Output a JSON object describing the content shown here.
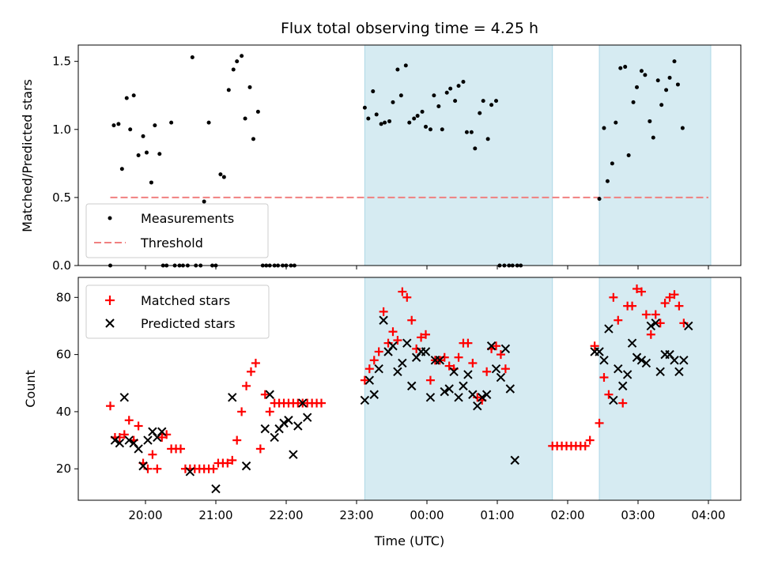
{
  "chart_data": {
    "type": "scatter",
    "title": "Flux total observing time = 4.25 h",
    "xlabel": "Time (UTC)",
    "x_tick_labels": [
      "20:00",
      "21:00",
      "22:00",
      "23:00",
      "00:00",
      "01:00",
      "02:00",
      "03:00",
      "04:00"
    ],
    "highlight_regions": [
      [
        "23:07",
        "01:47"
      ],
      [
        "02:27",
        "04:02"
      ]
    ],
    "colors": {
      "measurements": "#000000",
      "threshold": "#f08080",
      "matched": "#ff0000",
      "predicted": "#000000",
      "highlight": "#add8e6"
    },
    "top": {
      "ylabel": "Matched/Predicted stars",
      "ylim": [
        0,
        1.62
      ],
      "y_ticks": [
        "0.0",
        "0.5",
        "1.0",
        "1.5"
      ],
      "threshold": 0.5,
      "threshold_x": [
        "19:30",
        "04:00"
      ],
      "legend": [
        "Measurements",
        "Threshold"
      ],
      "measurements": [
        [
          "19:30",
          0
        ],
        [
          "19:33",
          1.03
        ],
        [
          "19:37",
          1.04
        ],
        [
          "19:40",
          0.71
        ],
        [
          "19:44",
          1.23
        ],
        [
          "19:47",
          1.0
        ],
        [
          "19:50",
          1.25
        ],
        [
          "19:54",
          0.81
        ],
        [
          "19:58",
          0.95
        ],
        [
          "20:01",
          0.83
        ],
        [
          "20:05",
          0.61
        ],
        [
          "20:08",
          1.03
        ],
        [
          "20:12",
          0.82
        ],
        [
          "20:15",
          0
        ],
        [
          "20:18",
          0
        ],
        [
          "20:22",
          1.05
        ],
        [
          "20:25",
          0
        ],
        [
          "20:29",
          0
        ],
        [
          "20:32",
          0
        ],
        [
          "20:36",
          0
        ],
        [
          "20:40",
          1.53
        ],
        [
          "20:43",
          0
        ],
        [
          "20:47",
          0
        ],
        [
          "20:50",
          0.47
        ],
        [
          "20:54",
          1.05
        ],
        [
          "20:57",
          0
        ],
        [
          "21:00",
          0
        ],
        [
          "21:04",
          0.67
        ],
        [
          "21:07",
          0.65
        ],
        [
          "21:11",
          1.29
        ],
        [
          "21:15",
          1.44
        ],
        [
          "21:18",
          1.5
        ],
        [
          "21:22",
          1.54
        ],
        [
          "21:25",
          1.08
        ],
        [
          "21:29",
          1.31
        ],
        [
          "21:32",
          0.93
        ],
        [
          "21:36",
          1.13
        ],
        [
          "21:40",
          0
        ],
        [
          "21:43",
          0
        ],
        [
          "21:46",
          0
        ],
        [
          "21:50",
          0
        ],
        [
          "21:53",
          0
        ],
        [
          "21:57",
          0
        ],
        [
          "22:00",
          0
        ],
        [
          "22:04",
          0
        ],
        [
          "22:07",
          0
        ],
        [
          "23:07",
          1.16
        ],
        [
          "23:10",
          1.08
        ],
        [
          "23:14",
          1.28
        ],
        [
          "23:17",
          1.11
        ],
        [
          "23:21",
          1.04
        ],
        [
          "23:24",
          1.05
        ],
        [
          "23:28",
          1.06
        ],
        [
          "23:31",
          1.2
        ],
        [
          "23:35",
          1.44
        ],
        [
          "23:38",
          1.25
        ],
        [
          "23:42",
          1.47
        ],
        [
          "23:45",
          1.05
        ],
        [
          "23:49",
          1.08
        ],
        [
          "23:52",
          1.1
        ],
        [
          "23:56",
          1.13
        ],
        [
          "23:59",
          1.02
        ],
        [
          "00:03",
          1.0
        ],
        [
          "00:06",
          1.25
        ],
        [
          "00:10",
          1.17
        ],
        [
          "00:13",
          1.0
        ],
        [
          "00:17",
          1.27
        ],
        [
          "00:20",
          1.3
        ],
        [
          "00:24",
          1.21
        ],
        [
          "00:27",
          1.32
        ],
        [
          "00:31",
          1.35
        ],
        [
          "00:34",
          0.98
        ],
        [
          "00:38",
          0.98
        ],
        [
          "00:41",
          0.86
        ],
        [
          "00:45",
          1.12
        ],
        [
          "00:48",
          1.21
        ],
        [
          "00:52",
          0.93
        ],
        [
          "00:55",
          1.18
        ],
        [
          "00:59",
          1.21
        ],
        [
          "01:02",
          0
        ],
        [
          "01:06",
          0
        ],
        [
          "01:10",
          0
        ],
        [
          "01:13",
          0
        ],
        [
          "01:17",
          0
        ],
        [
          "01:20",
          0
        ],
        [
          "02:27",
          0.49
        ],
        [
          "02:31",
          1.01
        ],
        [
          "02:34",
          0.62
        ],
        [
          "02:38",
          0.75
        ],
        [
          "02:41",
          1.05
        ],
        [
          "02:45",
          1.45
        ],
        [
          "02:49",
          1.46
        ],
        [
          "02:52",
          0.81
        ],
        [
          "02:56",
          1.2
        ],
        [
          "02:59",
          1.31
        ],
        [
          "03:03",
          1.43
        ],
        [
          "03:06",
          1.4
        ],
        [
          "03:10",
          1.06
        ],
        [
          "03:13",
          0.94
        ],
        [
          "03:17",
          1.36
        ],
        [
          "03:20",
          1.18
        ],
        [
          "03:24",
          1.29
        ],
        [
          "03:27",
          1.38
        ],
        [
          "03:31",
          1.5
        ],
        [
          "03:34",
          1.33
        ],
        [
          "03:38",
          1.01
        ]
      ]
    },
    "bottom": {
      "ylabel": "Count",
      "ylim": [
        9,
        87
      ],
      "y_ticks": [
        "20",
        "40",
        "60",
        "80"
      ],
      "legend": [
        "Matched stars",
        "Predicted stars"
      ],
      "matched": [
        [
          "19:30",
          42
        ],
        [
          "19:34",
          31
        ],
        [
          "19:38",
          31
        ],
        [
          "19:42",
          32
        ],
        [
          "19:46",
          37
        ],
        [
          "19:50",
          30
        ],
        [
          "19:54",
          35
        ],
        [
          "19:58",
          22
        ],
        [
          "20:02",
          20
        ],
        [
          "20:06",
          25
        ],
        [
          "20:10",
          20
        ],
        [
          "20:14",
          31
        ],
        [
          "20:18",
          32
        ],
        [
          "20:22",
          27
        ],
        [
          "20:26",
          27
        ],
        [
          "20:30",
          27
        ],
        [
          "20:34",
          20
        ],
        [
          "20:38",
          20
        ],
        [
          "20:42",
          20
        ],
        [
          "20:46",
          20
        ],
        [
          "20:50",
          20
        ],
        [
          "20:54",
          20
        ],
        [
          "20:58",
          20
        ],
        [
          "21:02",
          22
        ],
        [
          "21:06",
          22
        ],
        [
          "21:10",
          22
        ],
        [
          "21:14",
          23
        ],
        [
          "21:18",
          30
        ],
        [
          "21:22",
          40
        ],
        [
          "21:26",
          49
        ],
        [
          "21:30",
          54
        ],
        [
          "21:34",
          57
        ],
        [
          "21:38",
          27
        ],
        [
          "21:42",
          46
        ],
        [
          "21:46",
          40
        ],
        [
          "21:50",
          43
        ],
        [
          "21:54",
          43
        ],
        [
          "21:58",
          43
        ],
        [
          "22:02",
          43
        ],
        [
          "22:06",
          43
        ],
        [
          "22:10",
          43
        ],
        [
          "22:14",
          43
        ],
        [
          "22:18",
          43
        ],
        [
          "22:22",
          43
        ],
        [
          "22:26",
          43
        ],
        [
          "22:30",
          43
        ],
        [
          "23:07",
          51
        ],
        [
          "23:11",
          55
        ],
        [
          "23:15",
          58
        ],
        [
          "23:19",
          61
        ],
        [
          "23:23",
          75
        ],
        [
          "23:27",
          64
        ],
        [
          "23:31",
          68
        ],
        [
          "23:35",
          65
        ],
        [
          "23:39",
          82
        ],
        [
          "23:43",
          80
        ],
        [
          "23:47",
          72
        ],
        [
          "23:51",
          62
        ],
        [
          "23:55",
          66
        ],
        [
          "23:59",
          67
        ],
        [
          "00:03",
          51
        ],
        [
          "00:07",
          58
        ],
        [
          "00:11",
          58
        ],
        [
          "00:15",
          59
        ],
        [
          "00:19",
          56
        ],
        [
          "00:23",
          55
        ],
        [
          "00:27",
          59
        ],
        [
          "00:31",
          64
        ],
        [
          "00:35",
          64
        ],
        [
          "00:39",
          57
        ],
        [
          "00:43",
          45
        ],
        [
          "00:47",
          44
        ],
        [
          "00:51",
          54
        ],
        [
          "00:55",
          62
        ],
        [
          "00:59",
          63
        ],
        [
          "01:03",
          60
        ],
        [
          "01:07",
          55
        ],
        [
          "01:47",
          28
        ],
        [
          "01:51",
          28
        ],
        [
          "01:55",
          28
        ],
        [
          "01:59",
          28
        ],
        [
          "02:03",
          28
        ],
        [
          "02:07",
          28
        ],
        [
          "02:11",
          28
        ],
        [
          "02:15",
          28
        ],
        [
          "02:19",
          30
        ],
        [
          "02:23",
          63
        ],
        [
          "02:27",
          36
        ],
        [
          "02:31",
          52
        ],
        [
          "02:35",
          46
        ],
        [
          "02:39",
          80
        ],
        [
          "02:43",
          72
        ],
        [
          "02:47",
          43
        ],
        [
          "02:51",
          77
        ],
        [
          "02:55",
          77
        ],
        [
          "02:59",
          83
        ],
        [
          "03:03",
          82
        ],
        [
          "03:07",
          74
        ],
        [
          "03:11",
          67
        ],
        [
          "03:15",
          74
        ],
        [
          "03:19",
          71
        ],
        [
          "03:23",
          78
        ],
        [
          "03:27",
          80
        ],
        [
          "03:31",
          81
        ],
        [
          "03:35",
          77
        ],
        [
          "03:39",
          71
        ]
      ],
      "predicted": [
        [
          "19:34",
          30
        ],
        [
          "19:38",
          29
        ],
        [
          "19:42",
          45
        ],
        [
          "19:46",
          30
        ],
        [
          "19:50",
          29
        ],
        [
          "19:54",
          27
        ],
        [
          "19:58",
          21
        ],
        [
          "20:02",
          30
        ],
        [
          "20:06",
          33
        ],
        [
          "20:10",
          31
        ],
        [
          "20:14",
          33
        ],
        [
          "20:38",
          19
        ],
        [
          "21:00",
          13
        ],
        [
          "21:14",
          45
        ],
        [
          "21:26",
          21
        ],
        [
          "21:42",
          34
        ],
        [
          "21:46",
          46
        ],
        [
          "21:50",
          31
        ],
        [
          "21:54",
          34
        ],
        [
          "21:58",
          36
        ],
        [
          "22:02",
          37
        ],
        [
          "22:06",
          25
        ],
        [
          "22:10",
          35
        ],
        [
          "22:14",
          43
        ],
        [
          "22:18",
          38
        ],
        [
          "23:07",
          44
        ],
        [
          "23:11",
          51
        ],
        [
          "23:15",
          46
        ],
        [
          "23:19",
          55
        ],
        [
          "23:23",
          72
        ],
        [
          "23:27",
          61
        ],
        [
          "23:31",
          63
        ],
        [
          "23:35",
          54
        ],
        [
          "23:39",
          57
        ],
        [
          "23:43",
          64
        ],
        [
          "23:47",
          49
        ],
        [
          "23:51",
          59
        ],
        [
          "23:55",
          61
        ],
        [
          "23:59",
          61
        ],
        [
          "00:03",
          45
        ],
        [
          "00:07",
          58
        ],
        [
          "00:11",
          58
        ],
        [
          "00:15",
          47
        ],
        [
          "00:19",
          48
        ],
        [
          "00:23",
          54
        ],
        [
          "00:27",
          45
        ],
        [
          "00:31",
          49
        ],
        [
          "00:35",
          53
        ],
        [
          "00:39",
          46
        ],
        [
          "00:43",
          42
        ],
        [
          "00:47",
          45
        ],
        [
          "00:51",
          46
        ],
        [
          "00:55",
          63
        ],
        [
          "00:59",
          55
        ],
        [
          "01:03",
          52
        ],
        [
          "01:07",
          62
        ],
        [
          "01:11",
          48
        ],
        [
          "01:15",
          23
        ],
        [
          "02:23",
          61
        ],
        [
          "02:27",
          61
        ],
        [
          "02:31",
          58
        ],
        [
          "02:35",
          69
        ],
        [
          "02:39",
          44
        ],
        [
          "02:43",
          55
        ],
        [
          "02:47",
          49
        ],
        [
          "02:51",
          53
        ],
        [
          "02:55",
          64
        ],
        [
          "02:59",
          59
        ],
        [
          "03:03",
          58
        ],
        [
          "03:07",
          57
        ],
        [
          "03:11",
          70
        ],
        [
          "03:15",
          71
        ],
        [
          "03:19",
          54
        ],
        [
          "03:23",
          60
        ],
        [
          "03:27",
          60
        ],
        [
          "03:31",
          58
        ],
        [
          "03:35",
          54
        ],
        [
          "03:39",
          58
        ],
        [
          "03:43",
          70
        ]
      ]
    }
  }
}
